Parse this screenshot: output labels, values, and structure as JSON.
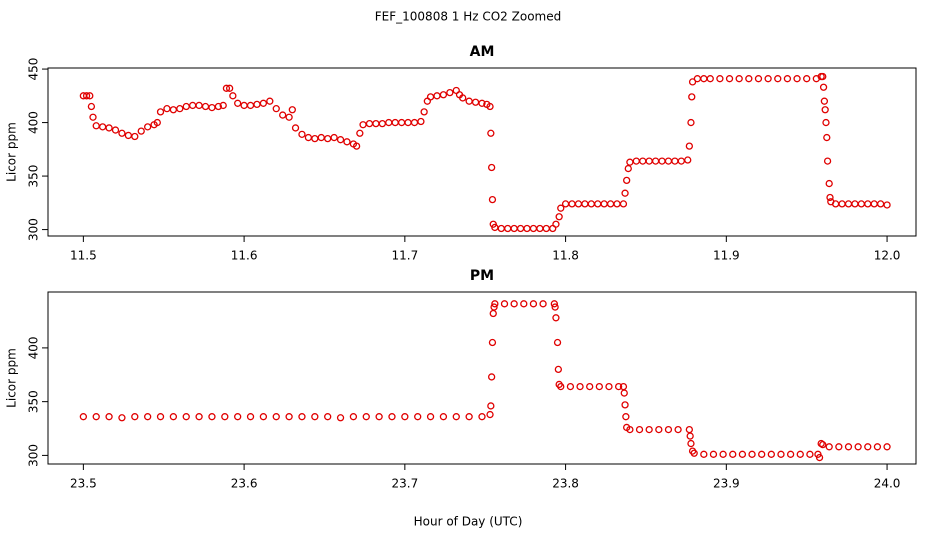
{
  "title": "FEF_100808  1 Hz CO2 Zoomed",
  "xlabel": "Hour of Day (UTC)",
  "chart_data": [
    {
      "type": "scatter",
      "title": "AM",
      "ylabel": "Licor ppm",
      "color": "#e00000",
      "xlim": [
        11.478,
        12.018
      ],
      "ylim": [
        294,
        451
      ],
      "xticks": [
        11.5,
        11.6,
        11.7,
        11.8,
        11.9,
        {
          "value": 12,
          "label": "12.0"
        }
      ],
      "yticks": [
        300,
        350,
        400,
        450
      ],
      "x": [
        11.5,
        11.502,
        11.504,
        11.505,
        11.506,
        11.508,
        11.512,
        11.516,
        11.52,
        11.524,
        11.528,
        11.532,
        11.536,
        11.54,
        11.544,
        11.546,
        11.548,
        11.552,
        11.556,
        11.56,
        11.564,
        11.568,
        11.572,
        11.576,
        11.58,
        11.584,
        11.587,
        11.589,
        11.591,
        11.593,
        11.596,
        11.6,
        11.604,
        11.608,
        11.612,
        11.616,
        11.62,
        11.624,
        11.628,
        11.63,
        11.632,
        11.636,
        11.64,
        11.644,
        11.648,
        11.652,
        11.656,
        11.66,
        11.664,
        11.668,
        11.67,
        11.672,
        11.674,
        11.678,
        11.682,
        11.686,
        11.69,
        11.694,
        11.698,
        11.702,
        11.706,
        11.71,
        11.712,
        11.714,
        11.716,
        11.72,
        11.724,
        11.728,
        11.732,
        11.734,
        11.736,
        11.74,
        11.744,
        11.748,
        11.751,
        11.753,
        11.7535,
        11.754,
        11.7545,
        11.755,
        11.756,
        11.76,
        11.764,
        11.768,
        11.772,
        11.776,
        11.78,
        11.784,
        11.788,
        11.792,
        11.794,
        11.796,
        11.797,
        11.8,
        11.804,
        11.808,
        11.812,
        11.816,
        11.82,
        11.824,
        11.828,
        11.832,
        11.836,
        11.837,
        11.838,
        11.839,
        11.84,
        11.844,
        11.848,
        11.852,
        11.856,
        11.86,
        11.864,
        11.868,
        11.872,
        11.876,
        11.877,
        11.878,
        11.8785,
        11.879,
        11.882,
        11.886,
        11.89,
        11.896,
        11.902,
        11.908,
        11.914,
        11.92,
        11.926,
        11.932,
        11.938,
        11.944,
        11.95,
        11.956,
        11.959,
        11.96,
        11.9605,
        11.961,
        11.9615,
        11.962,
        11.9625,
        11.963,
        11.964,
        11.9645,
        11.965,
        11.968,
        11.972,
        11.976,
        11.98,
        11.984,
        11.988,
        11.992,
        11.996,
        12.0
      ],
      "values": [
        425,
        425,
        425,
        415,
        405,
        397,
        396,
        395,
        393,
        390,
        388,
        387,
        392,
        396,
        398,
        400,
        410,
        413,
        412,
        413,
        415,
        416,
        416,
        415,
        414,
        415,
        416,
        432,
        432,
        425,
        418,
        416,
        416,
        417,
        418,
        420,
        413,
        407,
        405,
        412,
        395,
        389,
        386,
        385,
        386,
        385,
        386,
        384,
        382,
        380,
        378,
        390,
        398,
        399,
        399,
        399,
        400,
        400,
        400,
        400,
        400,
        401,
        410,
        420,
        424,
        425,
        426,
        428,
        430,
        426,
        423,
        420,
        419,
        418,
        417,
        415,
        390,
        358,
        328,
        305,
        302,
        301,
        301,
        301,
        301,
        301,
        301,
        301,
        301,
        301,
        305,
        312,
        320,
        324,
        324,
        324,
        324,
        324,
        324,
        324,
        324,
        324,
        324,
        334,
        346,
        357,
        363,
        364,
        364,
        364,
        364,
        364,
        364,
        364,
        364,
        365,
        378,
        400,
        424,
        438,
        441,
        441,
        441,
        441,
        441,
        441,
        441,
        441,
        441,
        441,
        441,
        441,
        441,
        441,
        443,
        443,
        433,
        420,
        412,
        400,
        386,
        364,
        343,
        330,
        326,
        324,
        324,
        324,
        324,
        324,
        324,
        324,
        324,
        323
      ]
    },
    {
      "type": "scatter",
      "title": "PM",
      "ylabel": "Licor ppm",
      "color": "#e00000",
      "xlim": [
        23.478,
        24.018
      ],
      "ylim": [
        292,
        452
      ],
      "xticks": [
        23.5,
        23.6,
        23.7,
        23.8,
        23.9,
        {
          "value": 24,
          "label": "24.0"
        }
      ],
      "yticks": [
        300,
        350,
        400
      ],
      "x": [
        23.5,
        23.508,
        23.516,
        23.524,
        23.532,
        23.54,
        23.548,
        23.556,
        23.564,
        23.572,
        23.58,
        23.588,
        23.596,
        23.604,
        23.612,
        23.62,
        23.628,
        23.636,
        23.644,
        23.652,
        23.66,
        23.668,
        23.676,
        23.684,
        23.692,
        23.7,
        23.708,
        23.716,
        23.724,
        23.732,
        23.74,
        23.748,
        23.753,
        23.7535,
        23.754,
        23.7545,
        23.755,
        23.7555,
        23.756,
        23.762,
        23.768,
        23.774,
        23.78,
        23.786,
        23.793,
        23.7935,
        23.794,
        23.795,
        23.7955,
        23.796,
        23.797,
        23.803,
        23.809,
        23.815,
        23.821,
        23.827,
        23.833,
        23.836,
        23.8365,
        23.837,
        23.8375,
        23.838,
        23.84,
        23.846,
        23.852,
        23.858,
        23.864,
        23.87,
        23.877,
        23.8775,
        23.878,
        23.879,
        23.88,
        23.886,
        23.892,
        23.898,
        23.904,
        23.91,
        23.916,
        23.922,
        23.928,
        23.934,
        23.94,
        23.946,
        23.952,
        23.957,
        23.958,
        23.959,
        23.96,
        23.964,
        23.97,
        23.976,
        23.982,
        23.988,
        23.994,
        24.0
      ],
      "values": [
        336,
        336,
        336,
        335,
        336,
        336,
        336,
        336,
        336,
        336,
        336,
        336,
        336,
        336,
        336,
        336,
        336,
        336,
        336,
        336,
        335,
        336,
        336,
        336,
        336,
        336,
        336,
        336,
        336,
        336,
        336,
        336,
        338,
        346,
        373,
        405,
        432,
        438,
        441,
        441,
        441,
        441,
        441,
        441,
        441,
        438,
        428,
        405,
        380,
        366,
        364,
        364,
        364,
        364,
        364,
        364,
        364,
        364,
        358,
        347,
        336,
        326,
        324,
        324,
        324,
        324,
        324,
        324,
        324,
        318,
        311,
        304,
        302,
        301,
        301,
        301,
        301,
        301,
        301,
        301,
        301,
        301,
        301,
        301,
        301,
        301,
        298,
        311,
        310,
        308,
        308,
        308,
        308,
        308,
        308,
        308
      ]
    }
  ]
}
